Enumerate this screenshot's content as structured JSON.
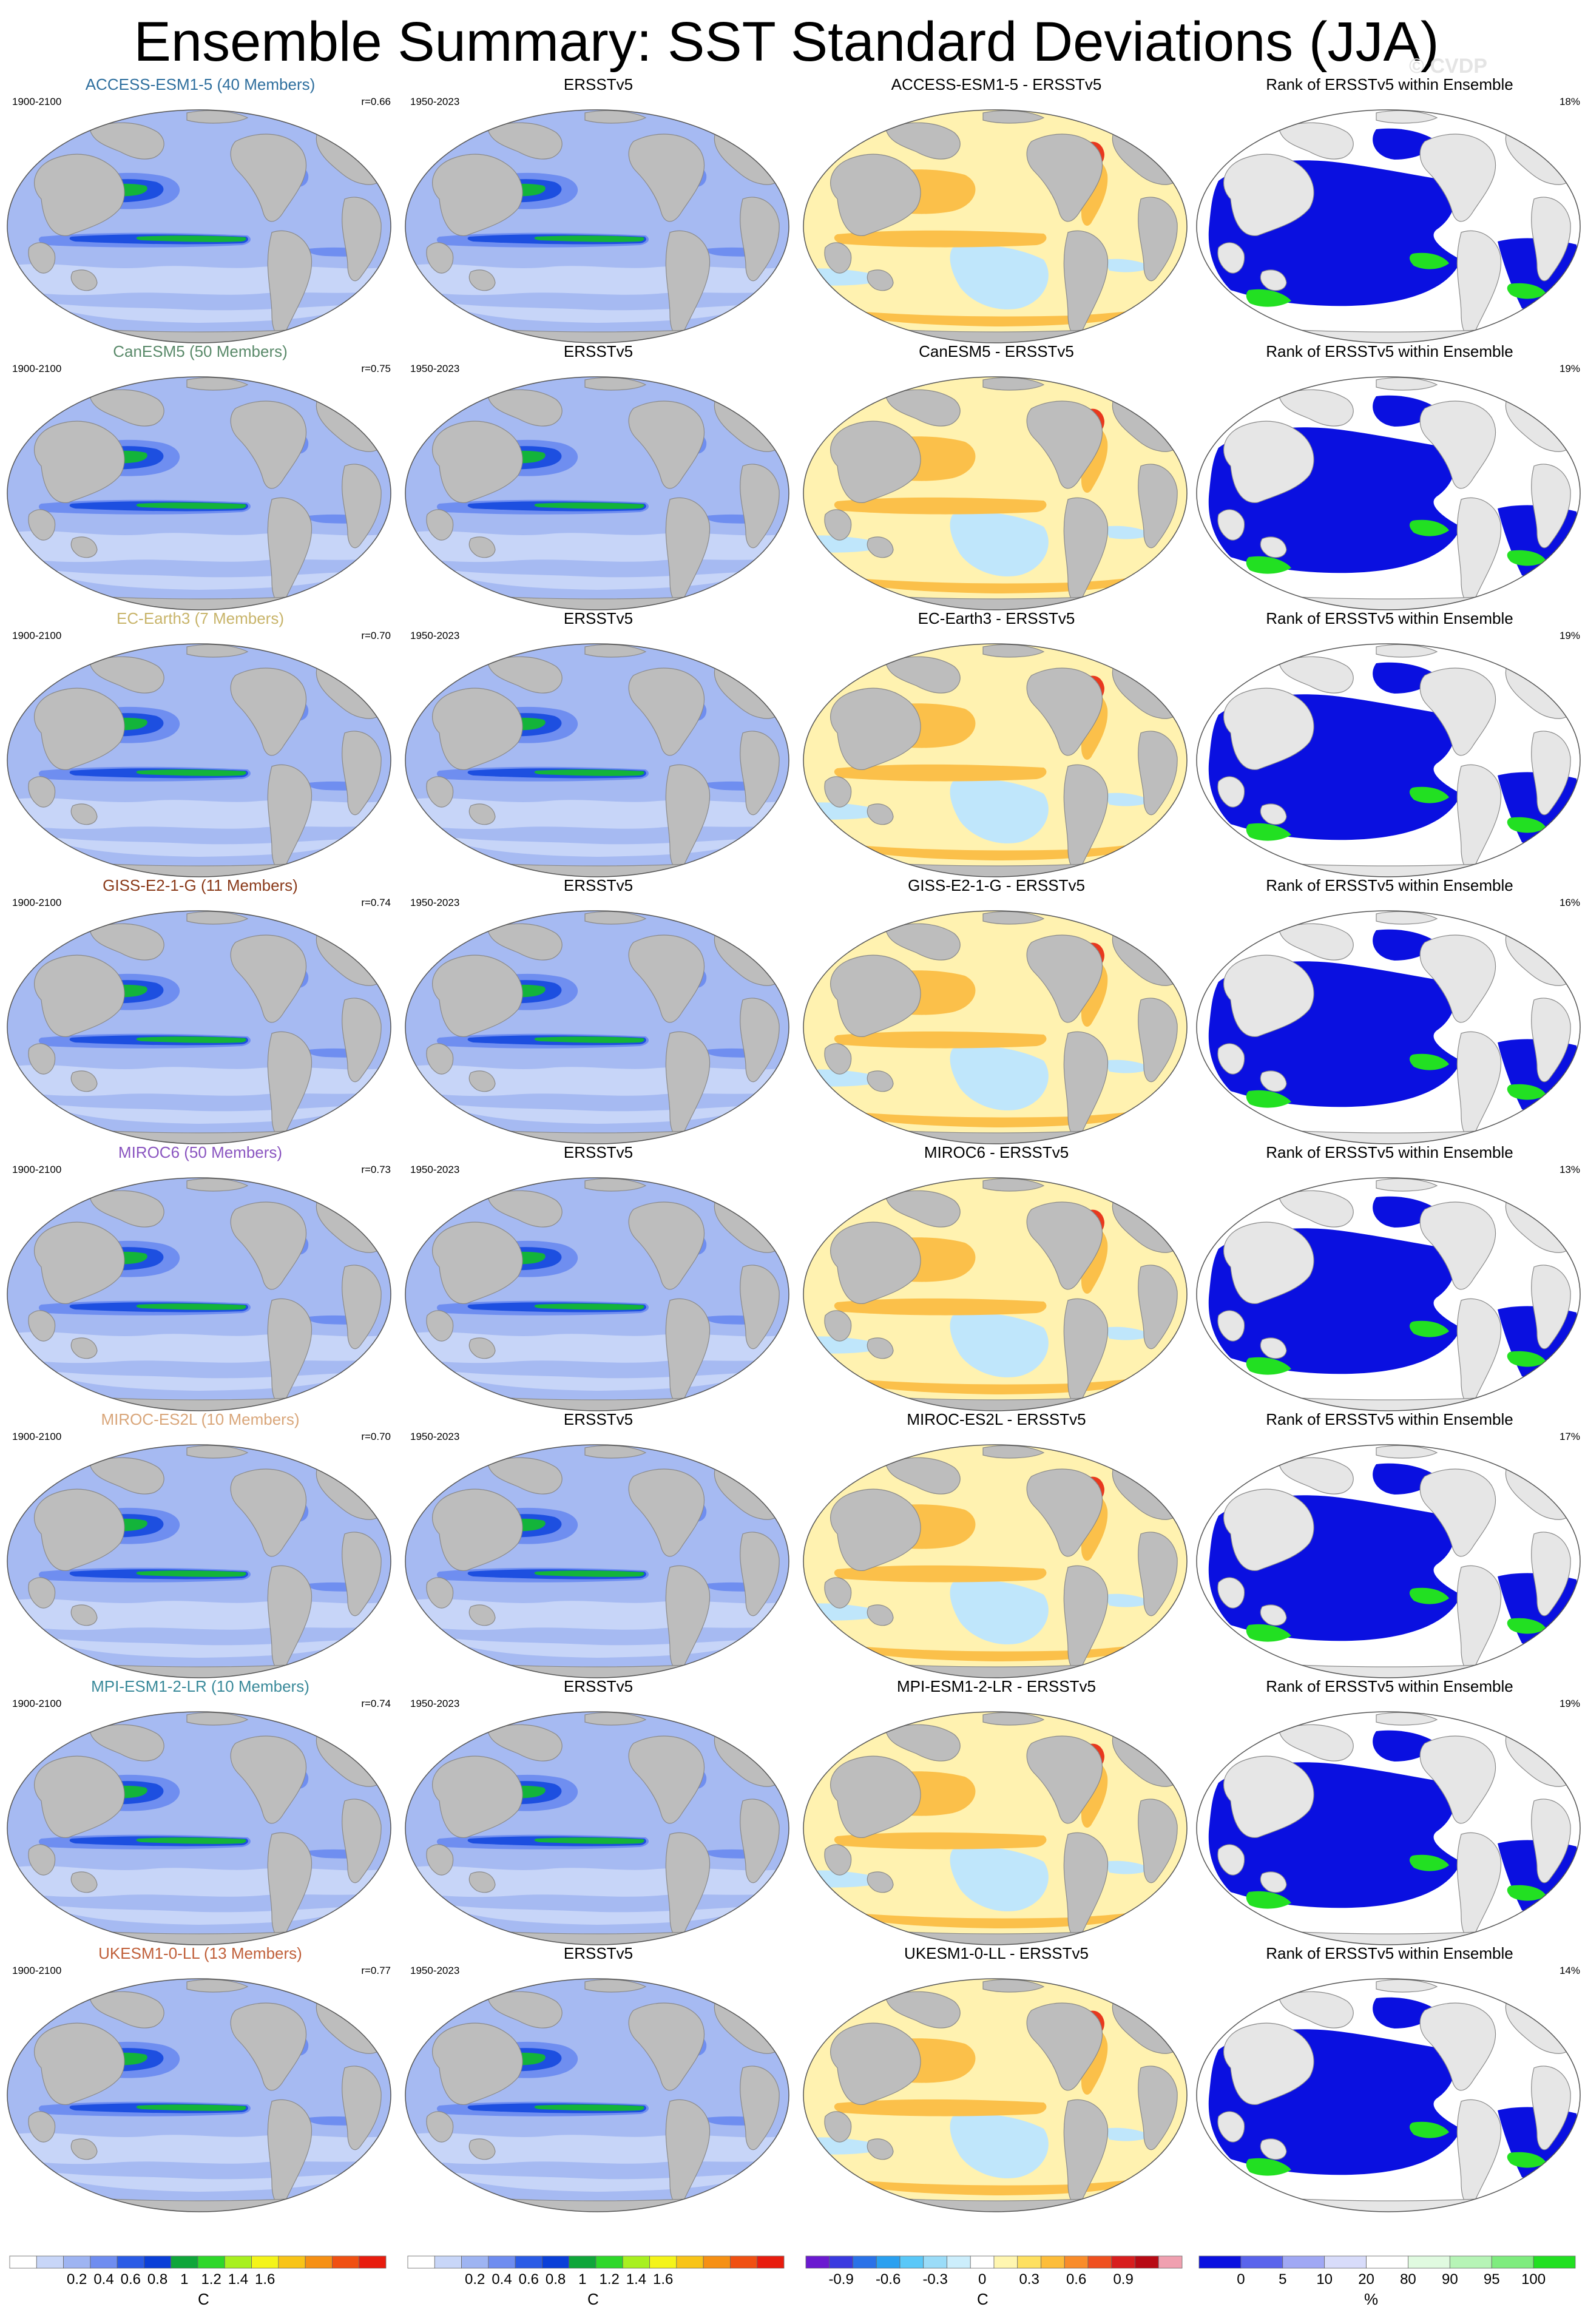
{
  "title": "Ensemble Summary: SST Standard Deviations (JJA)",
  "watermark": "© CVDP",
  "model_period": "1900-2100",
  "obs_period": "1950-2023",
  "obs_name": "ERSSTv5",
  "rank_title": "Rank of ERSSTv5 within Ensemble",
  "rows": [
    {
      "model_title": "ACCESS-ESM1-5 (40 Members)",
      "model_color": "#2f6f9e",
      "corr": "r=0.66",
      "diff_title": "ACCESS-ESM1-5 - ERSSTv5",
      "rank_pct": "18%"
    },
    {
      "model_title": "CanESM5 (50 Members)",
      "model_color": "#5a8a6a",
      "corr": "r=0.75",
      "diff_title": "CanESM5 - ERSSTv5",
      "rank_pct": "19%"
    },
    {
      "model_title": "EC-Earth3 (7 Members)",
      "model_color": "#c8b46a",
      "corr": "r=0.70",
      "diff_title": "EC-Earth3 - ERSSTv5",
      "rank_pct": "19%"
    },
    {
      "model_title": "GISS-E2-1-G (11 Members)",
      "model_color": "#8a3a1a",
      "corr": "r=0.74",
      "diff_title": "GISS-E2-1-G - ERSSTv5",
      "rank_pct": "16%"
    },
    {
      "model_title": "MIROC6 (50 Members)",
      "model_color": "#8a55c0",
      "corr": "r=0.73",
      "diff_title": "MIROC6 - ERSSTv5",
      "rank_pct": "13%"
    },
    {
      "model_title": "MIROC-ES2L (10 Members)",
      "model_color": "#d9a67a",
      "corr": "r=0.70",
      "diff_title": "MIROC-ES2L - ERSSTv5",
      "rank_pct": "17%"
    },
    {
      "model_title": "MPI-ESM1-2-LR (10 Members)",
      "model_color": "#3a8a9a",
      "corr": "r=0.74",
      "diff_title": "MPI-ESM1-2-LR - ERSSTv5",
      "rank_pct": "19%"
    },
    {
      "model_title": "UKESM1-0-LL (13 Members)",
      "model_color": "#c0603a",
      "corr": "r=0.77",
      "diff_title": "UKESM1-0-LL - ERSSTv5",
      "rank_pct": "14%"
    }
  ],
  "colorbars": {
    "std": {
      "unit": "C",
      "labels": [
        "0.2",
        "0.4",
        "0.6",
        "0.8",
        "1",
        "1.2",
        "1.4",
        "1.6"
      ],
      "colors": [
        "#ffffff",
        "#c8d6f8",
        "#9eb4f2",
        "#6f8df0",
        "#2a5be6",
        "#0a3fd8",
        "#0fa63a",
        "#2ed82a",
        "#a8f020",
        "#f4f41a",
        "#f8c418",
        "#f69014",
        "#f05012",
        "#e81c0e"
      ]
    },
    "diff": {
      "unit": "C",
      "labels": [
        "-0.9",
        "-0.6",
        "-0.3",
        "0",
        "0.3",
        "0.6",
        "0.9"
      ],
      "colors": [
        "#6a1ad0",
        "#3a3ae0",
        "#2a72e8",
        "#2aa0f0",
        "#5ac8f8",
        "#9adcf8",
        "#cceefc",
        "#ffffff",
        "#fff6b0",
        "#fee060",
        "#fdbd3a",
        "#f98c2a",
        "#ef5020",
        "#d81e1e",
        "#b80a14",
        "#f0a0b0"
      ]
    },
    "rank": {
      "unit": "%",
      "labels": [
        "0",
        "5",
        "10",
        "20",
        "80",
        "90",
        "95",
        "100"
      ],
      "colors": [
        "#0a10e0",
        "#5a64ec",
        "#a0a8f4",
        "#d8dcfa",
        "#ffffff",
        "#e0fae0",
        "#b6f4b6",
        "#7eec7e",
        "#22e022"
      ]
    }
  },
  "map_colors": {
    "land": "#bdbdbd",
    "std_base": "#a6baf2",
    "std_light": "#c7d5f8",
    "std_mid": "#6f8ef0",
    "std_blue": "#1d4fe0",
    "std_green": "#13b43a",
    "std_lime": "#8cf01e",
    "std_yellow": "#f6ee1a",
    "std_red": "#ea2210",
    "diff_base": "#fff2b0",
    "diff_orange": "#fbc04a",
    "diff_red": "#e8381e",
    "diff_blue": "#bfe6fb",
    "rank_land": "#e6e6e6",
    "rank_blue": "#0a10e0",
    "rank_green": "#22e022"
  }
}
